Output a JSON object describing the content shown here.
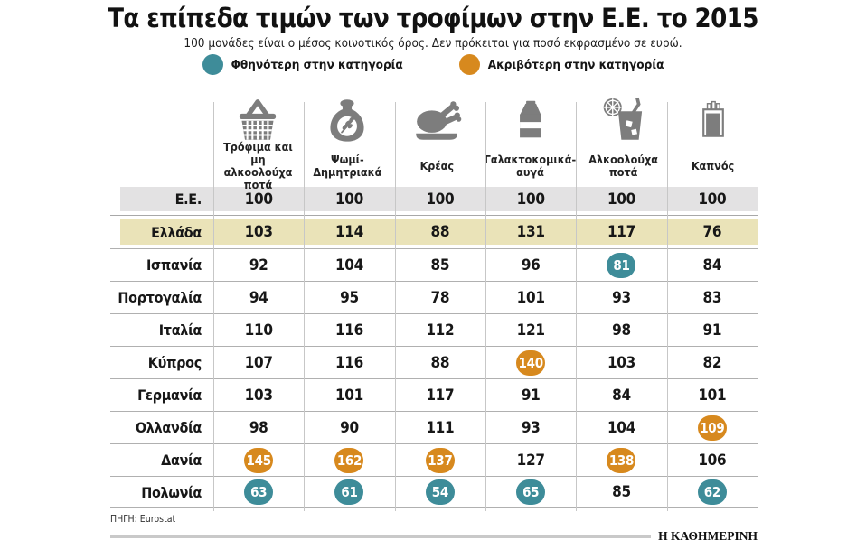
{
  "header": {
    "title": "Τα επίπεδα τιμών των τροφίμων στην Ε.Ε. το 2015",
    "subtitle": "100 μονάδες είναι ο μέσος κοινοτικός όρος. Δεν πρόκειται για ποσό εκφρασμένο σε ευρώ."
  },
  "legend": {
    "cheapest": {
      "label": "Φθηνότερη στην κατηγορία",
      "color": "#3e8c99"
    },
    "most_expensive": {
      "label": "Ακριβότερη στην κατηγορία",
      "color": "#d7891e"
    }
  },
  "colors": {
    "eu_row_bg": "#e3e2e3",
    "greece_row_bg": "#eae3b8"
  },
  "chart_data": {
    "type": "table",
    "title": "Τα επίπεδα τιμών των τροφίμων στην Ε.Ε. το 2015",
    "columns": [
      {
        "icon": "basket-icon",
        "label": "Τρόφιμα και μη αλκοολούχα ποτά"
      },
      {
        "icon": "grain-sack-icon",
        "label": "Ψωμί-Δημητριακά"
      },
      {
        "icon": "poultry-icon",
        "label": "Κρέας"
      },
      {
        "icon": "milk-carton-icon",
        "label": "Γαλακτοκομικά-αυγά"
      },
      {
        "icon": "drink-icon",
        "label": "Αλκοολούχα ποτά"
      },
      {
        "icon": "cigarettes-icon",
        "label": "Καπνός"
      }
    ],
    "rows": [
      {
        "label": "Ε.Ε.",
        "style": "eu",
        "values": [
          100,
          100,
          100,
          100,
          100,
          100
        ]
      },
      {
        "label": "Ελλάδα",
        "style": "greece",
        "values": [
          103,
          114,
          88,
          131,
          117,
          76
        ]
      },
      {
        "label": "Ισπανία",
        "values": [
          92,
          104,
          85,
          96,
          81,
          84
        ],
        "markers": {
          "4": "cheapest"
        }
      },
      {
        "label": "Πορτογαλία",
        "values": [
          94,
          95,
          78,
          101,
          93,
          83
        ]
      },
      {
        "label": "Ιταλία",
        "values": [
          110,
          116,
          112,
          121,
          98,
          91
        ]
      },
      {
        "label": "Κύπρος",
        "values": [
          107,
          116,
          88,
          140,
          103,
          82
        ],
        "markers": {
          "3": "expensive"
        }
      },
      {
        "label": "Γερμανία",
        "values": [
          103,
          101,
          117,
          91,
          84,
          101
        ]
      },
      {
        "label": "Ολλανδία",
        "values": [
          98,
          90,
          111,
          93,
          104,
          109
        ],
        "markers": {
          "5": "expensive"
        }
      },
      {
        "label": "Δανία",
        "values": [
          145,
          162,
          137,
          127,
          138,
          106
        ],
        "markers": {
          "0": "expensive",
          "1": "expensive",
          "2": "expensive",
          "4": "expensive"
        }
      },
      {
        "label": "Πολωνία",
        "values": [
          63,
          61,
          54,
          65,
          85,
          62
        ],
        "markers": {
          "0": "cheapest",
          "1": "cheapest",
          "2": "cheapest",
          "3": "cheapest",
          "5": "cheapest"
        }
      }
    ]
  },
  "footer": {
    "source": "ΠΗΓΗ: Eurostat",
    "brand": "Η ΚΑΘΗΜΕΡΙΝΗ"
  }
}
